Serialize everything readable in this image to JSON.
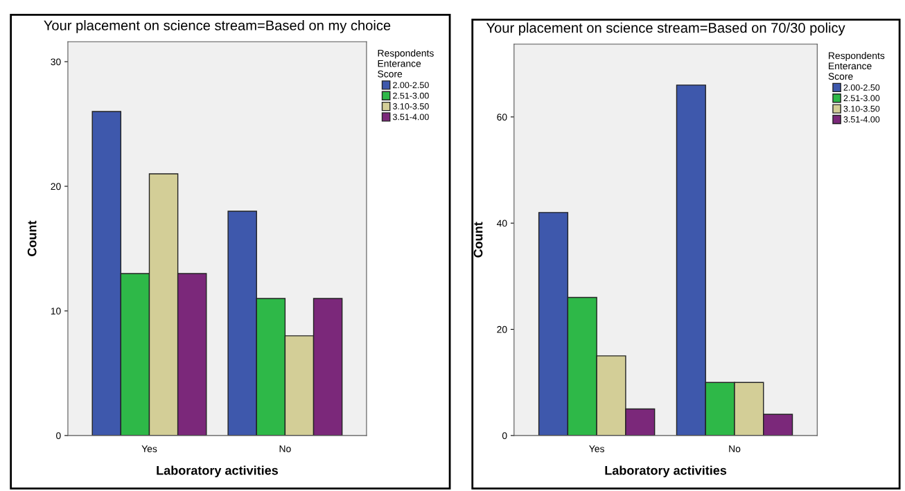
{
  "chart_data": [
    {
      "type": "bar",
      "title": "Your placement on science stream=Based on my choice",
      "xlabel": "Laboratory activities",
      "ylabel": "Count",
      "legend_title": "Respondents\nEnterance\nScore",
      "legend": "right",
      "categories": [
        "Yes",
        "No"
      ],
      "ylim": [
        0,
        31.6
      ],
      "yticks": [
        0,
        10,
        20,
        30
      ],
      "grid": false,
      "series": [
        {
          "name": "2.00-2.50",
          "color": "#3e58ac",
          "values": [
            26,
            18
          ]
        },
        {
          "name": "2.51-3.00",
          "color": "#2eb848",
          "values": [
            13,
            11
          ]
        },
        {
          "name": "3.10-3.50",
          "color": "#d3ce97",
          "values": [
            21,
            8
          ]
        },
        {
          "name": "3.51-4.00",
          "color": "#7b287a",
          "values": [
            13,
            11
          ]
        }
      ]
    },
    {
      "type": "bar",
      "title": "Your placement on science stream=Based on 70/30 policy",
      "xlabel": "Laboratory activities",
      "ylabel": "Count",
      "legend_title": "Respondents\nEnterance\nScore",
      "legend": "right",
      "categories": [
        "Yes",
        "No"
      ],
      "ylim": [
        0,
        73.7
      ],
      "yticks": [
        0,
        20,
        40,
        60
      ],
      "grid": false,
      "series": [
        {
          "name": "2.00-2.50",
          "color": "#3e58ac",
          "values": [
            42,
            66
          ]
        },
        {
          "name": "2.51-3.00",
          "color": "#2eb848",
          "values": [
            26,
            10
          ]
        },
        {
          "name": "3.10-3.50",
          "color": "#d3ce97",
          "values": [
            15,
            10
          ]
        },
        {
          "name": "3.51-4.00",
          "color": "#7b287a",
          "values": [
            5,
            4
          ]
        }
      ]
    }
  ]
}
